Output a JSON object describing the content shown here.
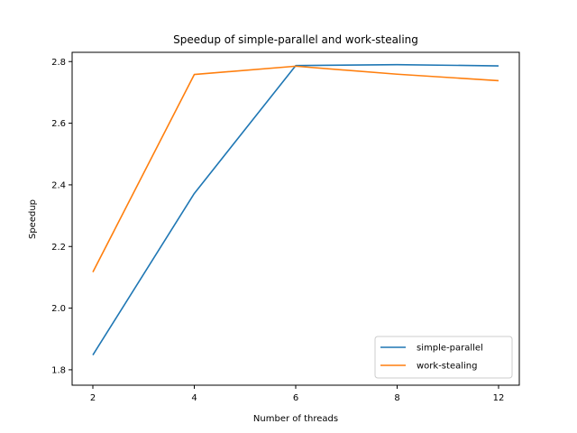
{
  "chart_data": {
    "type": "line",
    "title": "Speedup of simple-parallel and work-stealing",
    "xlabel": "Number of threads",
    "ylabel": "Speedup",
    "x_ticks": [
      "2",
      "4",
      "6",
      "8",
      "12"
    ],
    "y_ticks": [
      "1.8",
      "2.0",
      "2.2",
      "2.4",
      "2.6",
      "2.8"
    ],
    "ylim": [
      1.75,
      2.83
    ],
    "grid": false,
    "legend_position": "lower-right",
    "series": [
      {
        "name": "simple-parallel",
        "color": "#1f77b4",
        "x": [
          "2",
          "4",
          "6",
          "8",
          "12"
        ],
        "values": [
          1.848,
          2.372,
          2.787,
          2.79,
          2.786
        ]
      },
      {
        "name": "work-stealing",
        "color": "#ff7f0e",
        "x": [
          "2",
          "4",
          "6",
          "8",
          "12"
        ],
        "values": [
          2.117,
          2.758,
          2.785,
          2.759,
          2.738
        ]
      }
    ]
  }
}
